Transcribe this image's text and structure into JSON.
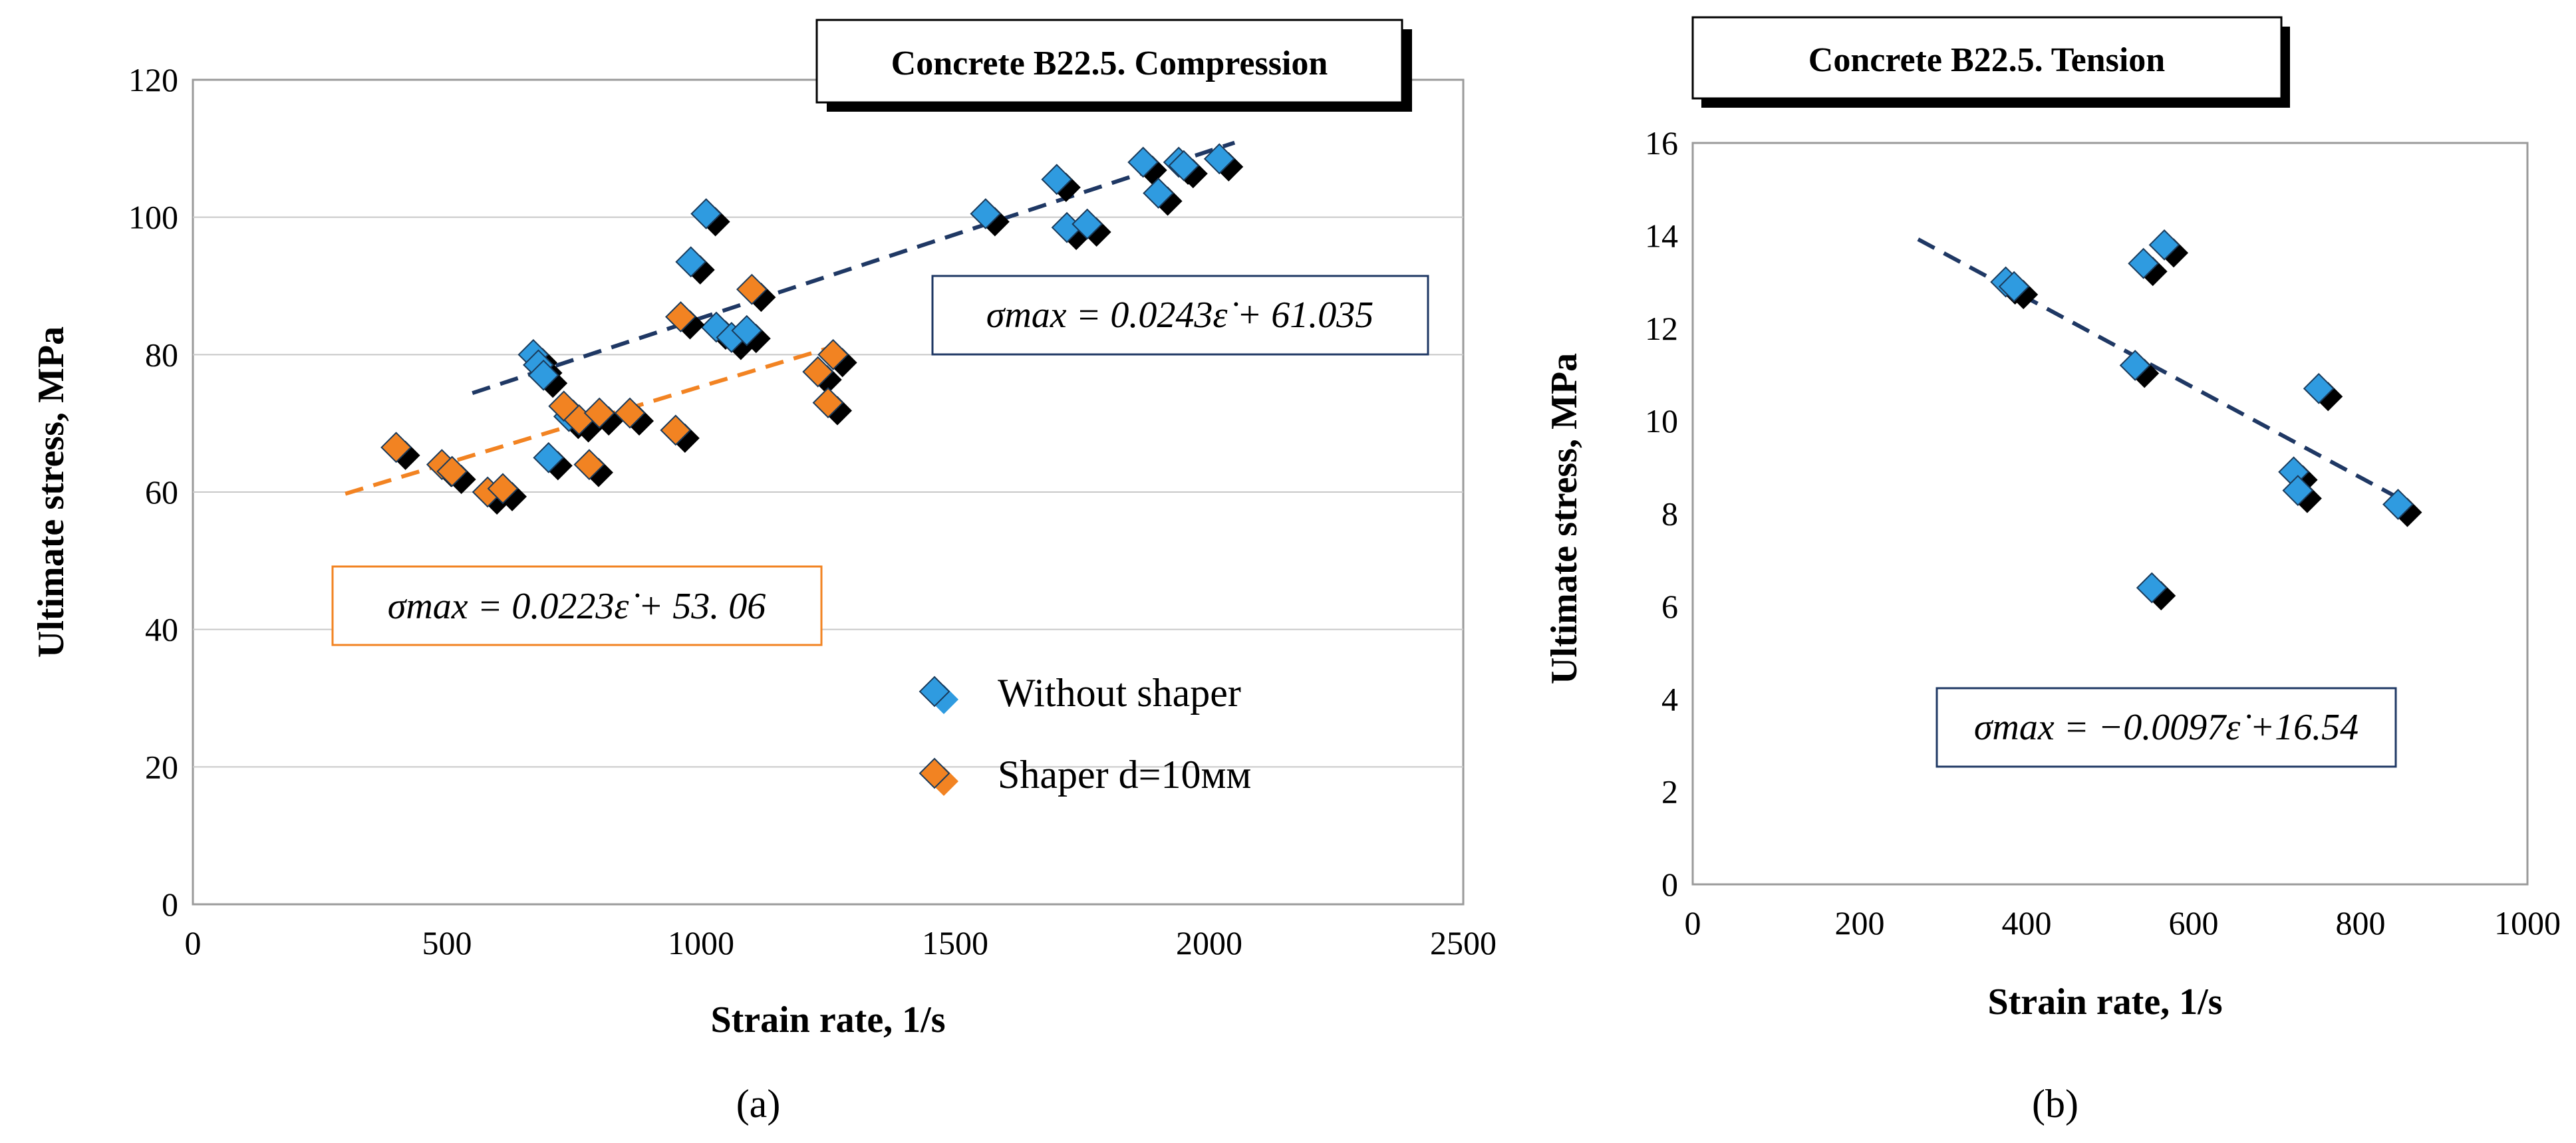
{
  "chart_data": [
    {
      "type": "scatter",
      "panel_label": "(a)",
      "title": "Concrete B22.5. Compression",
      "xlabel": "Strain rate, 1/s",
      "ylabel": "Ultimate stress, MPa",
      "xlim": [
        0,
        2500
      ],
      "ylim": [
        0,
        120
      ],
      "xticks": [
        "0",
        "500",
        "1000",
        "1500",
        "2000",
        "2500"
      ],
      "yticks": [
        "0",
        "20",
        "40",
        "60",
        "80",
        "100",
        "120"
      ],
      "grid": true,
      "legend_position": "bottom-right",
      "series": [
        {
          "name": "Without shaper",
          "color": "#2f9be0",
          "shadow_color": "#000000",
          "points": [
            [
              670,
              80
            ],
            [
              680,
              78.5
            ],
            [
              690,
              77
            ],
            [
              700,
              65
            ],
            [
              740,
              71
            ],
            [
              980,
              93.5
            ],
            [
              1010,
              100.5
            ],
            [
              1030,
              84
            ],
            [
              1060,
              82.5
            ],
            [
              1090,
              83.5
            ],
            [
              1560,
              100.5
            ],
            [
              1700,
              105.5
            ],
            [
              1720,
              98.5
            ],
            [
              1760,
              99
            ],
            [
              1870,
              108
            ],
            [
              1900,
              103.5
            ],
            [
              1940,
              108
            ],
            [
              1950,
              107.5
            ],
            [
              2020,
              108.5
            ]
          ],
          "trendline": {
            "x": [
              550,
              2050
            ],
            "equation": "σmax = 0.0243ε̇ + 61.035",
            "color": "#1f3864"
          }
        },
        {
          "name": "Shaper d=10мм",
          "color": "#f28322",
          "shadow_color": "#000000",
          "points": [
            [
              400,
              66.5
            ],
            [
              490,
              64
            ],
            [
              510,
              63
            ],
            [
              580,
              60
            ],
            [
              610,
              60.5
            ],
            [
              730,
              72.5
            ],
            [
              760,
              70.5
            ],
            [
              780,
              64
            ],
            [
              800,
              71.5
            ],
            [
              860,
              71.5
            ],
            [
              950,
              69
            ],
            [
              960,
              85.5
            ],
            [
              1100,
              89.5
            ],
            [
              1230,
              77.5
            ],
            [
              1250,
              73
            ],
            [
              1260,
              80
            ]
          ],
          "trendline": {
            "x": [
              300,
              1270
            ],
            "equation": "σmax = 0.0223ε̇ + 53. 06",
            "color": "#f28322"
          }
        }
      ]
    },
    {
      "type": "scatter",
      "panel_label": "(b)",
      "title": "Concrete B22.5. Tension",
      "xlabel": "Strain rate, 1/s",
      "ylabel": "Ultimate stress, MPa",
      "xlim": [
        0,
        1000
      ],
      "ylim": [
        0,
        16
      ],
      "xticks": [
        "0",
        "200",
        "400",
        "600",
        "800",
        "1000"
      ],
      "yticks": [
        "0",
        "2",
        "4",
        "6",
        "8",
        "10",
        "12",
        "14",
        "16"
      ],
      "grid": false,
      "series": [
        {
          "color": "#2f9be0",
          "shadow_color": "#000000",
          "points": [
            [
              375,
              13
            ],
            [
              385,
              12.9
            ],
            [
              530,
              11.2
            ],
            [
              540,
              13.4
            ],
            [
              550,
              6.4
            ],
            [
              565,
              13.8
            ],
            [
              720,
              8.9
            ],
            [
              725,
              8.5
            ],
            [
              750,
              10.7
            ],
            [
              845,
              8.2
            ]
          ],
          "trendline": {
            "x": [
              270,
              850
            ],
            "equation": "σmax = −0.0097ε̇ +16.54",
            "color": "#1f3864"
          }
        }
      ]
    }
  ]
}
